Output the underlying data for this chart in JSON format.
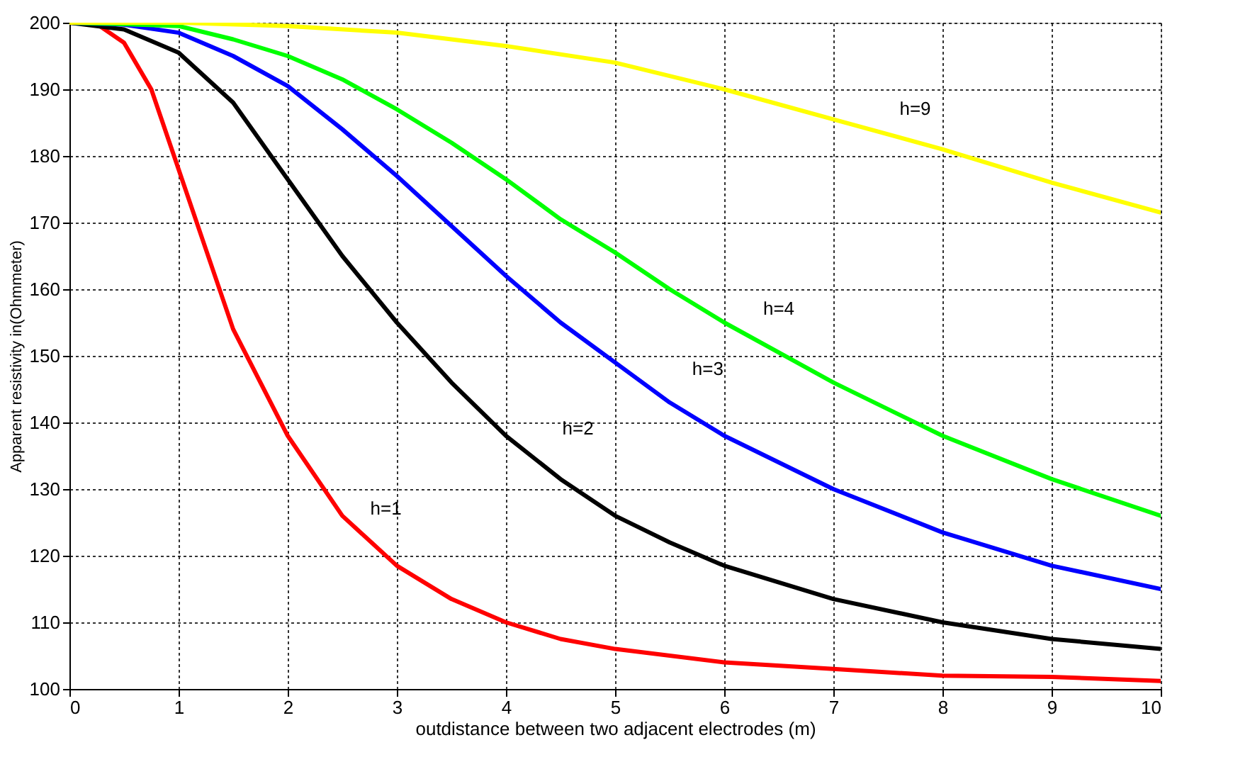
{
  "chart_data": {
    "type": "line",
    "xlabel": "outdistance between two adjacent electrodes (m)",
    "ylabel": "Apparent resistivity in(Ohmmeter)",
    "xlim": [
      0,
      10
    ],
    "ylim": [
      100,
      200
    ],
    "xticks": [
      0,
      1,
      2,
      3,
      4,
      5,
      6,
      7,
      8,
      9,
      10
    ],
    "yticks": [
      100,
      110,
      120,
      130,
      140,
      150,
      160,
      170,
      180,
      190,
      200
    ],
    "grid": true,
    "line_style": "solid",
    "series": [
      {
        "name": "h=1",
        "color": "#ff0000",
        "x": [
          0,
          0.25,
          0.5,
          0.75,
          1,
          1.25,
          1.5,
          1.75,
          2,
          2.5,
          3,
          3.5,
          4,
          4.5,
          5,
          6,
          7,
          8,
          9,
          10
        ],
        "values": [
          200,
          199.8,
          197,
          190,
          178,
          166,
          154,
          146,
          138,
          126,
          118.5,
          113.5,
          110,
          107.5,
          106,
          104,
          103,
          102,
          101.8,
          101.2
        ]
      },
      {
        "name": "h=2",
        "color": "#000000",
        "x": [
          0,
          0.5,
          1,
          1.5,
          2,
          2.5,
          3,
          3.5,
          4,
          4.5,
          5,
          5.5,
          6,
          7,
          8,
          9,
          10
        ],
        "values": [
          200,
          199,
          195.5,
          188,
          176.5,
          165,
          155,
          146,
          138,
          131.5,
          126,
          122,
          118.5,
          113.5,
          110,
          107.5,
          106
        ]
      },
      {
        "name": "h=3",
        "color": "#0000ff",
        "x": [
          0,
          0.5,
          1,
          1.5,
          2,
          2.5,
          3,
          3.5,
          4,
          4.5,
          5,
          5.5,
          6,
          7,
          8,
          9,
          10
        ],
        "values": [
          200,
          199.7,
          198.5,
          195,
          190.5,
          184,
          177,
          169.5,
          162,
          155,
          149,
          143,
          138,
          130,
          123.5,
          118.5,
          115
        ]
      },
      {
        "name": "h=4",
        "color": "#00ff00",
        "x": [
          0,
          0.5,
          1,
          1.5,
          2,
          2.5,
          3,
          3.5,
          4,
          4.5,
          5,
          5.5,
          6,
          7,
          8,
          9,
          10
        ],
        "values": [
          200,
          199.8,
          199.5,
          197.5,
          195,
          191.5,
          187,
          182,
          176.5,
          170.5,
          165.5,
          160,
          155,
          146,
          138,
          131.5,
          126
        ]
      },
      {
        "name": "h=9",
        "color": "#ffff00",
        "x": [
          0,
          1,
          2,
          3,
          4,
          5,
          6,
          7,
          8,
          9,
          10
        ],
        "values": [
          200,
          200,
          199.5,
          198.5,
          196.5,
          194,
          190,
          185.5,
          181,
          176,
          171.5
        ]
      }
    ]
  }
}
